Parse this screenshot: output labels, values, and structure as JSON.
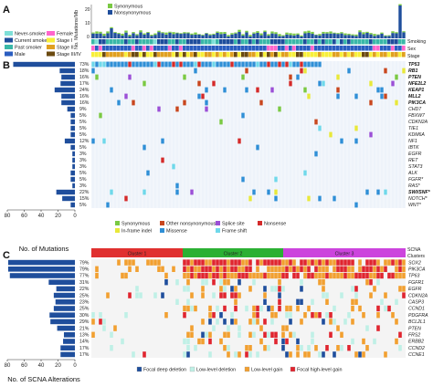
{
  "panels": {
    "a": "A",
    "b": "B",
    "c": "C"
  },
  "colors": {
    "synonymous": "#7ac943",
    "nonsynonymous": "#1f4e9c",
    "bar": "#1f4e9c",
    "other_nonsyn": "#c8461e",
    "missense": "#2f8fd6",
    "splice": "#9b4fd6",
    "nonsense": "#d42a2a",
    "inframe": "#e8e83a",
    "frameshift": "#6fd8ea",
    "deep_del": "#1f4e9c",
    "low_del": "#bff0e6",
    "low_gain": "#f2a030",
    "high_gain": "#e0252f",
    "cluster1": "#e0302f",
    "cluster2": "#2bb033",
    "cluster3": "#cc44dd",
    "grid_bg": "#eef3fa"
  },
  "panel_a": {
    "ylabel": "No. Mutations/Mb",
    "yticks": [
      "0",
      "10",
      "20"
    ],
    "legend": [
      {
        "name": "Synonymous",
        "color": "#7ac943"
      },
      {
        "name": "Nonsynonymous",
        "color": "#1f4e9c"
      }
    ],
    "clinical_legend": [
      {
        "name": "Never-smoker",
        "color": "#7fe0d8"
      },
      {
        "name": "Female",
        "color": "#ff66cc"
      },
      {
        "name": "Current smoker",
        "color": "#1f4e9c"
      },
      {
        "name": "Stage I",
        "color": "#f7ef3a"
      },
      {
        "name": "Past smoker",
        "color": "#3ab8a8"
      },
      {
        "name": "Stage II",
        "color": "#e0a020"
      },
      {
        "name": "Male",
        "color": "#2a5dc0"
      },
      {
        "name": "Stage III/IV",
        "color": "#6b4a10"
      }
    ],
    "tracks": [
      "Smoking",
      "Sex",
      "Stage"
    ]
  },
  "panel_b": {
    "genes": [
      {
        "name": "TP53",
        "pct": "73%",
        "bold": true,
        "value": 73
      },
      {
        "name": "RB1",
        "pct": "18%",
        "bold": true,
        "value": 18
      },
      {
        "name": "PTEN",
        "pct": "16%",
        "bold": true,
        "value": 16
      },
      {
        "name": "NFE2L2",
        "pct": "17%",
        "bold": true,
        "value": 17
      },
      {
        "name": "KEAP1",
        "pct": "24%",
        "bold": true,
        "value": 24
      },
      {
        "name": "MLL2",
        "pct": "16%",
        "bold": true,
        "value": 16
      },
      {
        "name": "PIK3CA",
        "pct": "16%",
        "bold": true,
        "value": 16
      },
      {
        "name": "CHD7",
        "pct": "9%",
        "bold": false,
        "value": 9
      },
      {
        "name": "FBXW7",
        "pct": "5%",
        "bold": false,
        "value": 5
      },
      {
        "name": "CDKN2A",
        "pct": "5%",
        "bold": false,
        "value": 5
      },
      {
        "name": "TIE1",
        "pct": "5%",
        "bold": false,
        "value": 5
      },
      {
        "name": "KDM6A",
        "pct": "5%",
        "bold": false,
        "value": 5
      },
      {
        "name": "NF1",
        "pct": "12%",
        "bold": false,
        "value": 12
      },
      {
        "name": "IBTK",
        "pct": "5%",
        "bold": false,
        "value": 5
      },
      {
        "name": "EGFR",
        "pct": "3%",
        "bold": false,
        "value": 3
      },
      {
        "name": "RET",
        "pct": "3%",
        "bold": false,
        "value": 3
      },
      {
        "name": "STAT3",
        "pct": "3%",
        "bold": false,
        "value": 3
      },
      {
        "name": "ALK",
        "pct": "5%",
        "bold": false,
        "value": 5
      },
      {
        "name": "FGFR*",
        "pct": "5%",
        "bold": false,
        "value": 5
      },
      {
        "name": "RAS*",
        "pct": "3%",
        "bold": false,
        "value": 3
      },
      {
        "name": "SWI/SNF*",
        "pct": "22%",
        "bold": true,
        "value": 22
      },
      {
        "name": "NOTCH*",
        "pct": "15%",
        "bold": false,
        "value": 15
      },
      {
        "name": "WNT*",
        "pct": "5%",
        "bold": false,
        "value": 5
      }
    ],
    "axis_ticks": [
      "80",
      "60",
      "40",
      "20",
      "0"
    ],
    "axis_title": "No. of Mutations",
    "legend": [
      {
        "name": "Synonymous",
        "color": "#7ac943"
      },
      {
        "name": "Other nonsynonymous",
        "color": "#c8461e"
      },
      {
        "name": "Splice site",
        "color": "#9b4fd6"
      },
      {
        "name": "Nonsense",
        "color": "#d42a2a"
      },
      {
        "name": "In-frame indel",
        "color": "#e8e83a"
      },
      {
        "name": "Missense",
        "color": "#2f8fd6"
      },
      {
        "name": "Frame shift",
        "color": "#6fd8ea"
      }
    ]
  },
  "panel_c": {
    "header_title": "SCNA",
    "header_sub": "Clusters",
    "clusters": [
      {
        "name": "Cluster 1",
        "color": "#e0302f"
      },
      {
        "name": "Cluster 2",
        "color": "#2bb033"
      },
      {
        "name": "Cluster 3",
        "color": "#cc44dd"
      }
    ],
    "genes": [
      {
        "name": "SOX2",
        "pct": "79%",
        "value": 79
      },
      {
        "name": "PIK3CA",
        "pct": "79%",
        "value": 79
      },
      {
        "name": "TP63",
        "pct": "77%",
        "value": 77
      },
      {
        "name": "FGFR1",
        "pct": "31%",
        "value": 31
      },
      {
        "name": "EGFR",
        "pct": "22%",
        "value": 22
      },
      {
        "name": "CDKN2A",
        "pct": "25%",
        "value": 25
      },
      {
        "name": "CASP3",
        "pct": "23%",
        "value": 23
      },
      {
        "name": "CCND1",
        "pct": "25%",
        "value": 25
      },
      {
        "name": "PDGFRA",
        "pct": "30%",
        "value": 30
      },
      {
        "name": "BCL2L1",
        "pct": "29%",
        "value": 29
      },
      {
        "name": "PTEN",
        "pct": "21%",
        "value": 21
      },
      {
        "name": "FRS2",
        "pct": "13%",
        "value": 13
      },
      {
        "name": "ERBB2",
        "pct": "14%",
        "value": 14
      },
      {
        "name": "CCND2",
        "pct": "17%",
        "value": 17
      },
      {
        "name": "CCNE1",
        "pct": "17%",
        "value": 17
      }
    ],
    "axis_ticks": [
      "80",
      "60",
      "40",
      "20",
      "0"
    ],
    "axis_title": "No. of SCNA Alterations",
    "legend": [
      {
        "name": "Focal deep deletion",
        "color": "#1f4e9c"
      },
      {
        "name": "Low-level deletion",
        "color": "#bff0e6"
      },
      {
        "name": "Low-level gain",
        "color": "#f2a030"
      },
      {
        "name": "Focal high-level gain",
        "color": "#e0252f"
      }
    ]
  },
  "chart_data": [
    {
      "type": "bar",
      "panel": "A",
      "ylabel": "No. Mutations/Mb",
      "ylim": [
        0,
        25
      ],
      "series": [
        {
          "name": "Synonymous"
        },
        {
          "name": "Nonsynonymous"
        }
      ]
    },
    {
      "type": "heatmap",
      "panel": "B",
      "xlabel": "No. of Mutations",
      "categories": [
        "TP53",
        "RB1",
        "PTEN",
        "NFE2L2",
        "KEAP1",
        "MLL2",
        "PIK3CA",
        "CHD7",
        "FBXW7",
        "CDKN2A",
        "TIE1",
        "KDM6A",
        "NF1",
        "IBTK",
        "EGFR",
        "RET",
        "STAT3",
        "ALK",
        "FGFR*",
        "RAS*",
        "SWI/SNF*",
        "NOTCH*",
        "WNT*"
      ],
      "values": [
        73,
        18,
        16,
        17,
        24,
        16,
        16,
        9,
        5,
        5,
        5,
        5,
        12,
        5,
        3,
        3,
        3,
        5,
        5,
        3,
        22,
        15,
        5
      ],
      "xlim": [
        80,
        0
      ]
    },
    {
      "type": "heatmap",
      "panel": "C",
      "xlabel": "No. of SCNA Alterations",
      "categories": [
        "SOX2",
        "PIK3CA",
        "TP63",
        "FGFR1",
        "EGFR",
        "CDKN2A",
        "CASP3",
        "CCND1",
        "PDGFRA",
        "BCL2L1",
        "PTEN",
        "FRS2",
        "ERBB2",
        "CCND2",
        "CCNE1"
      ],
      "values": [
        79,
        79,
        77,
        31,
        22,
        25,
        23,
        25,
        30,
        29,
        21,
        13,
        14,
        17,
        17
      ],
      "xlim": [
        80,
        0
      ]
    }
  ]
}
